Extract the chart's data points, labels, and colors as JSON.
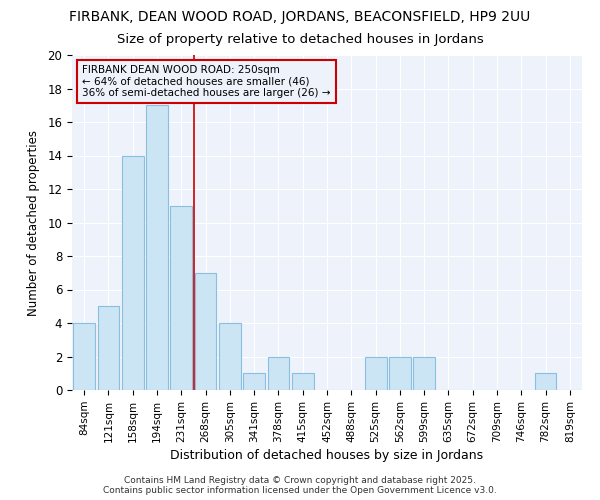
{
  "title1": "FIRBANK, DEAN WOOD ROAD, JORDANS, BEACONSFIELD, HP9 2UU",
  "title2": "Size of property relative to detached houses in Jordans",
  "xlabel": "Distribution of detached houses by size in Jordans",
  "ylabel": "Number of detached properties",
  "footer1": "Contains HM Land Registry data © Crown copyright and database right 2025.",
  "footer2": "Contains public sector information licensed under the Open Government Licence v3.0.",
  "categories": [
    "84sqm",
    "121sqm",
    "158sqm",
    "194sqm",
    "231sqm",
    "268sqm",
    "305sqm",
    "341sqm",
    "378sqm",
    "415sqm",
    "452sqm",
    "488sqm",
    "525sqm",
    "562sqm",
    "599sqm",
    "635sqm",
    "672sqm",
    "709sqm",
    "746sqm",
    "782sqm",
    "819sqm"
  ],
  "values": [
    4,
    5,
    14,
    17,
    11,
    7,
    4,
    1,
    2,
    1,
    0,
    0,
    2,
    2,
    2,
    0,
    0,
    0,
    0,
    1,
    0
  ],
  "bar_color": "#cce5f5",
  "bar_edge_color": "#89bfdf",
  "bg_color": "#ffffff",
  "plot_bg_color": "#eef2fa",
  "grid_color": "#ffffff",
  "marker_line_color": "#cc0000",
  "marker_label": "FIRBANK DEAN WOOD ROAD: 250sqm",
  "annotation_line1": "← 64% of detached houses are smaller (46)",
  "annotation_line2": "36% of semi-detached houses are larger (26) →",
  "annotation_box_edge": "#cc0000",
  "ylim": [
    0,
    20
  ],
  "yticks": [
    0,
    2,
    4,
    6,
    8,
    10,
    12,
    14,
    16,
    18,
    20
  ]
}
